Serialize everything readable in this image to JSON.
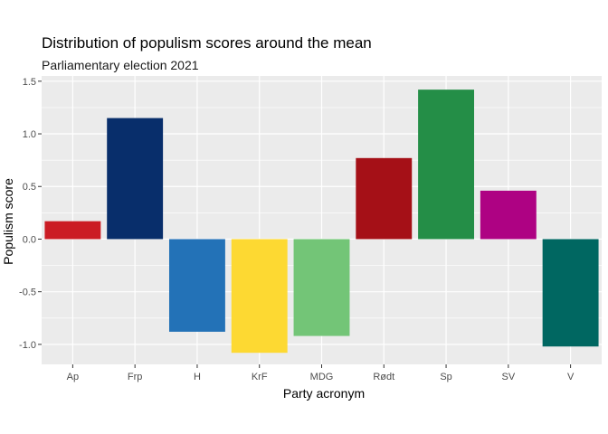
{
  "chart_data": {
    "type": "bar",
    "title": "Distribution of populism scores around the mean",
    "subtitle": "Parliamentary election 2021",
    "xlabel": "Party acronym",
    "ylabel": "Populism score",
    "categories": [
      "Ap",
      "Frp",
      "H",
      "KrF",
      "MDG",
      "Rødt",
      "Sp",
      "SV",
      "V"
    ],
    "values": [
      0.17,
      1.15,
      -0.88,
      -1.08,
      -0.92,
      0.77,
      1.42,
      0.46,
      -1.02
    ],
    "colors": [
      "#cb1c24",
      "#082e6b",
      "#2372b7",
      "#fdd932",
      "#73c577",
      "#a51017",
      "#248e47",
      "#ae0283",
      "#006761"
    ],
    "ylim": [
      -1.19,
      1.55
    ],
    "yticks": [
      -1.0,
      -0.5,
      0.0,
      0.5,
      1.0,
      1.5
    ],
    "ytick_labels": [
      "-1.0",
      "-0.5",
      "0.0",
      "0.5",
      "1.0",
      "1.5"
    ],
    "grid": true,
    "legend": "none",
    "panel_background": "#ebebeb",
    "grid_color": "#ffffff"
  }
}
